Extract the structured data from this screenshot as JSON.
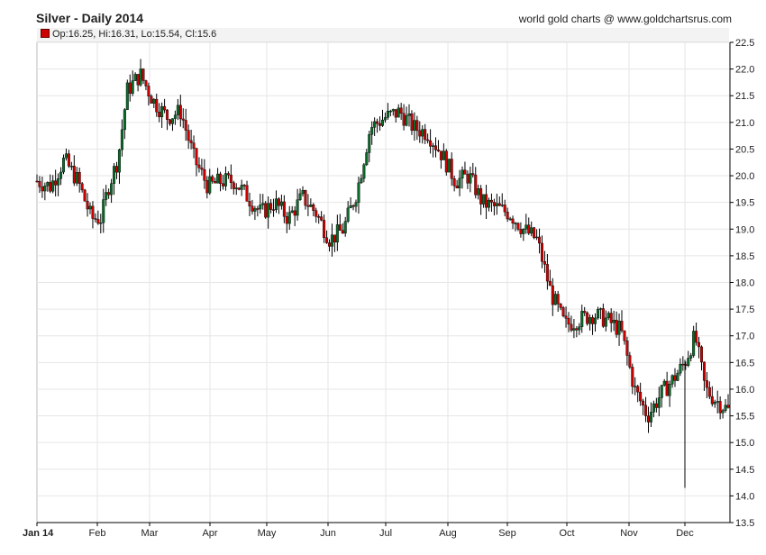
{
  "header": {
    "title": "Silver - Daily 2014",
    "source": "world gold charts @ www.goldchartsrus.com",
    "ohlc_readout": "Op:16.25, Hi:16.31, Lo:15.54, Cl:15.6"
  },
  "colors": {
    "up": "#0a6b2a",
    "down": "#cc0000",
    "wick": "#000000",
    "grid": "#e6e6e6",
    "axis": "#000000"
  },
  "chart_data": {
    "type": "candlestick",
    "title": "Silver - Daily 2014",
    "xlabel": "",
    "ylabel": "",
    "ylim": [
      13.5,
      22.5
    ],
    "yticks": [
      "13.5",
      "14.0",
      "14.5",
      "15.0",
      "15.5",
      "16.0",
      "16.5",
      "17.0",
      "17.5",
      "18.0",
      "18.5",
      "19.0",
      "19.5",
      "20.0",
      "20.5",
      "21.0",
      "21.5",
      "22.0",
      "22.5"
    ],
    "month_labels": [
      "Jan 14",
      "Feb",
      "Mar",
      "Apr",
      "May",
      "Jun",
      "Jul",
      "Aug",
      "Sep",
      "Oct",
      "Nov",
      "Dec"
    ],
    "grid": true,
    "last_candle": {
      "open": 16.25,
      "high": 16.31,
      "low": 15.54,
      "close": 15.6
    },
    "close_path": [
      {
        "month": "Jan 14",
        "day": 1,
        "close": 19.9
      },
      {
        "month": "Jan 14",
        "day": 8,
        "close": 19.8
      },
      {
        "month": "Jan 14",
        "day": 15,
        "close": 20.3
      },
      {
        "month": "Jan 14",
        "day": 22,
        "close": 19.9
      },
      {
        "month": "Jan 14",
        "day": 29,
        "close": 19.2
      },
      {
        "month": "Feb",
        "day": 3,
        "close": 19.2
      },
      {
        "month": "Feb",
        "day": 7,
        "close": 19.8
      },
      {
        "month": "Feb",
        "day": 12,
        "close": 20.3
      },
      {
        "month": "Feb",
        "day": 17,
        "close": 21.6
      },
      {
        "month": "Feb",
        "day": 24,
        "close": 21.9
      },
      {
        "month": "Mar",
        "day": 3,
        "close": 21.4
      },
      {
        "month": "Mar",
        "day": 10,
        "close": 21.1
      },
      {
        "month": "Mar",
        "day": 17,
        "close": 21.2
      },
      {
        "month": "Mar",
        "day": 24,
        "close": 20.3
      },
      {
        "month": "Mar",
        "day": 31,
        "close": 19.8
      },
      {
        "month": "Apr",
        "day": 7,
        "close": 19.9
      },
      {
        "month": "Apr",
        "day": 14,
        "close": 19.9
      },
      {
        "month": "Apr",
        "day": 21,
        "close": 19.6
      },
      {
        "month": "Apr",
        "day": 28,
        "close": 19.3
      },
      {
        "month": "May",
        "day": 5,
        "close": 19.5
      },
      {
        "month": "May",
        "day": 12,
        "close": 19.2
      },
      {
        "month": "May",
        "day": 19,
        "close": 19.6
      },
      {
        "month": "May",
        "day": 26,
        "close": 19.3
      },
      {
        "month": "Jun",
        "day": 2,
        "close": 18.8
      },
      {
        "month": "Jun",
        "day": 9,
        "close": 19.0
      },
      {
        "month": "Jun",
        "day": 16,
        "close": 19.7
      },
      {
        "month": "Jun",
        "day": 23,
        "close": 20.9
      },
      {
        "month": "Jul",
        "day": 1,
        "close": 21.1
      },
      {
        "month": "Jul",
        "day": 8,
        "close": 21.2
      },
      {
        "month": "Jul",
        "day": 15,
        "close": 20.9
      },
      {
        "month": "Jul",
        "day": 22,
        "close": 20.8
      },
      {
        "month": "Jul",
        "day": 29,
        "close": 20.4
      },
      {
        "month": "Aug",
        "day": 5,
        "close": 19.9
      },
      {
        "month": "Aug",
        "day": 12,
        "close": 20.0
      },
      {
        "month": "Aug",
        "day": 19,
        "close": 19.5
      },
      {
        "month": "Aug",
        "day": 26,
        "close": 19.4
      },
      {
        "month": "Sep",
        "day": 2,
        "close": 19.3
      },
      {
        "month": "Sep",
        "day": 9,
        "close": 19.0
      },
      {
        "month": "Sep",
        "day": 16,
        "close": 18.8
      },
      {
        "month": "Sep",
        "day": 23,
        "close": 17.8
      },
      {
        "month": "Sep",
        "day": 30,
        "close": 17.2
      },
      {
        "month": "Oct",
        "day": 7,
        "close": 17.3
      },
      {
        "month": "Oct",
        "day": 14,
        "close": 17.4
      },
      {
        "month": "Oct",
        "day": 21,
        "close": 17.3
      },
      {
        "month": "Oct",
        "day": 28,
        "close": 17.1
      },
      {
        "month": "Nov",
        "day": 4,
        "close": 16.0
      },
      {
        "month": "Nov",
        "day": 11,
        "close": 15.5
      },
      {
        "month": "Nov",
        "day": 18,
        "close": 15.9
      },
      {
        "month": "Nov",
        "day": 25,
        "close": 16.2
      },
      {
        "month": "Dec",
        "day": 1,
        "close": 16.5
      },
      {
        "month": "Dec",
        "day": 8,
        "close": 17.0
      },
      {
        "month": "Dec",
        "day": 15,
        "close": 16.0
      },
      {
        "month": "Dec",
        "day": 22,
        "close": 15.8
      },
      {
        "month": "Dec",
        "day": 31,
        "close": 15.6
      }
    ],
    "extremes": [
      {
        "label": "year high",
        "month": "Feb",
        "day": 24,
        "value": 22.2
      },
      {
        "label": "year low spike",
        "month": "Dec",
        "day": 1,
        "value": 14.15
      }
    ]
  }
}
